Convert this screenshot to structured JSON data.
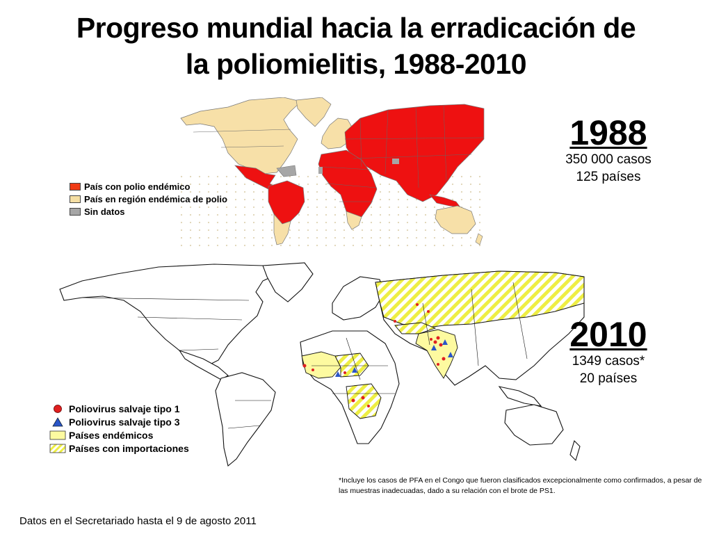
{
  "title": {
    "line1": "Progreso mundial hacia la erradicación de",
    "line2": "la poliomielitis, 1988-2010"
  },
  "map_1988": {
    "year": "1988",
    "cases": "350 000 casos",
    "countries": "125 países",
    "legend": [
      {
        "label": "País con polio endémico",
        "color": "#f03a14"
      },
      {
        "label": "País en región endémica de polio",
        "color": "#f5dfa4"
      },
      {
        "label": "Sin datos",
        "color": "#a6a6a6"
      }
    ],
    "colors": {
      "endemic": "#ee1111",
      "region": "#f7e0a8",
      "nodata": "#a6a6a6",
      "border": "#666666"
    }
  },
  "map_2010": {
    "year": "2010",
    "cases": "1349 casos*",
    "countries": "20 países",
    "legend": [
      {
        "label": "Poliovirus salvaje tipo 1",
        "symbol": "red-circle"
      },
      {
        "label": "Poliovirus salvaje tipo 3",
        "symbol": "blue-triangle"
      },
      {
        "label": "Países endémicos",
        "symbol": "yellow-box"
      },
      {
        "label": "Países con importaciones",
        "symbol": "hatched-box"
      }
    ],
    "colors": {
      "type1": "#e02020",
      "type3": "#2a55c8",
      "endemic_fill": "#fdfaa0",
      "hatch": "#eeee44"
    }
  },
  "footnote": "*Incluye los casos de PFA en el Congo que fueron clasificados excepcionalmente como confirmados, a pesar de las muestras inadecuadas, dado a su relación con el brote de PS1.",
  "footer": "Datos en el Secretariado hasta el 9 de agosto 2011"
}
